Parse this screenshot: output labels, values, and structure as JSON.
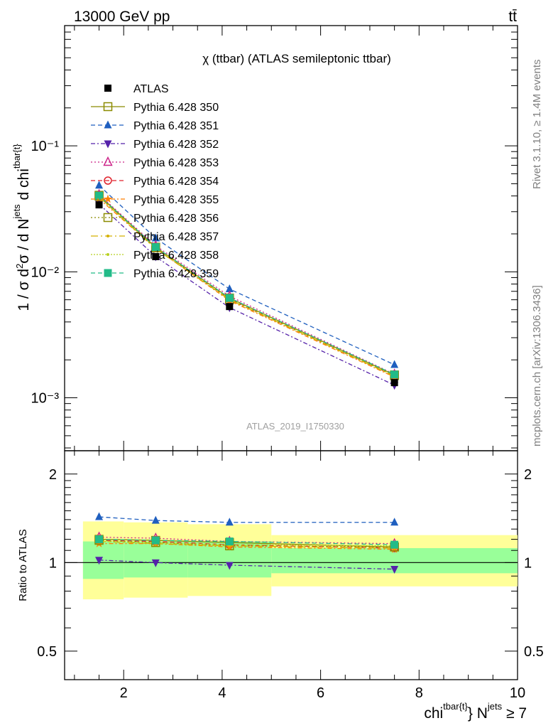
{
  "header": {
    "energy_label": "13000 GeV pp",
    "process_label": "tt̄",
    "plot_title": "χ (ttbar) (ATLAS semileptonic ttbar)",
    "analysis_id": "ATLAS_2019_I1750330",
    "rivet_label": "Rivet 3.1.10, ≥ 1.4M events",
    "mcplots_label": "mcplots.cern.ch [arXiv:1306.3436]"
  },
  "axes": {
    "y_main_label": "1 / σ d²σ / d N^jets d chi^tbar{t}",
    "y_ratio_label": "Ratio to ATLAS",
    "x_label": "chi^tbar{t} N^jets ≥ 7",
    "x_ticks": [
      "2",
      "4",
      "6",
      "8",
      "10"
    ],
    "y_main_ticks": [
      "10⁻³",
      "10⁻²",
      "10⁻¹"
    ],
    "y_ratio_ticks": [
      "0.5",
      "1",
      "2"
    ]
  },
  "chart_data": {
    "type": "line",
    "x_scale": "linear",
    "y_scale": "log",
    "xlim": [
      0.8,
      10.0
    ],
    "ylim": [
      0.00038,
      0.9
    ],
    "ratio_ylim": [
      0.4,
      2.4
    ],
    "x": [
      1.5,
      2.65,
      4.15,
      7.5
    ],
    "bins": [
      [
        1.0,
        2.0
      ],
      [
        2.0,
        3.3
      ],
      [
        3.3,
        5.0
      ],
      [
        5.0,
        10.0
      ]
    ],
    "reference": {
      "name": "ATLAS",
      "values": [
        0.034,
        0.0132,
        0.0053,
        0.00132
      ],
      "band_inner": [
        [
          0.88,
          1.18
        ],
        [
          0.89,
          1.18
        ],
        [
          0.89,
          1.18
        ],
        [
          0.92,
          1.12
        ]
      ],
      "band_outer": [
        [
          0.75,
          1.38
        ],
        [
          0.76,
          1.37
        ],
        [
          0.77,
          1.35
        ],
        [
          0.83,
          1.24
        ]
      ]
    },
    "series": [
      {
        "name": "Pythia 6.428 350",
        "color": "#8b8b00",
        "dash": "",
        "marker": "square-open",
        "values": [
          0.0405,
          0.0157,
          0.0062,
          0.00152
        ],
        "ratio": [
          1.2,
          1.19,
          1.17,
          1.13
        ]
      },
      {
        "name": "Pythia 6.428 351",
        "color": "#1f5fbf",
        "dash": "6,4",
        "marker": "triangle-up",
        "values": [
          0.0485,
          0.0185,
          0.0073,
          0.00183
        ],
        "ratio": [
          1.43,
          1.39,
          1.37,
          1.37
        ]
      },
      {
        "name": "Pythia 6.428 352",
        "color": "#5522aa",
        "dash": "6,3,2,3",
        "marker": "triangle-down",
        "values": [
          0.0345,
          0.0132,
          0.0052,
          0.00126
        ],
        "ratio": [
          1.02,
          1.0,
          0.98,
          0.95
        ]
      },
      {
        "name": "Pythia 6.428 353",
        "color": "#cc2288",
        "dash": "2,3",
        "marker": "triangle-open",
        "values": [
          0.041,
          0.0161,
          0.0064,
          0.00154
        ],
        "ratio": [
          1.22,
          1.21,
          1.18,
          1.16
        ]
      },
      {
        "name": "Pythia 6.428 354",
        "color": "#e0202a",
        "dash": "6,4",
        "marker": "circle-open",
        "values": [
          0.0395,
          0.0156,
          0.0061,
          0.00149
        ],
        "ratio": [
          1.19,
          1.18,
          1.15,
          1.12
        ]
      },
      {
        "name": "Pythia 6.428 355",
        "color": "#ff7f00",
        "dash": "6,3,2,3",
        "marker": "star",
        "values": [
          0.038,
          0.0153,
          0.0059,
          0.00146
        ],
        "ratio": [
          1.16,
          1.16,
          1.13,
          1.11
        ]
      },
      {
        "name": "Pythia 6.428 356",
        "color": "#8b8b00",
        "dash": "2,3",
        "marker": "square-open",
        "values": [
          0.0398,
          0.0155,
          0.006,
          0.0015
        ],
        "ratio": [
          1.19,
          1.17,
          1.14,
          1.13
        ]
      },
      {
        "name": "Pythia 6.428 357",
        "color": "#d4b000",
        "dash": "10,4,2,4",
        "marker": "dot",
        "values": [
          0.0392,
          0.0152,
          0.006,
          0.00148
        ],
        "ratio": [
          1.18,
          1.16,
          1.14,
          1.12
        ]
      },
      {
        "name": "Pythia 6.428 358",
        "color": "#b8d020",
        "dash": "2,2",
        "marker": "dot",
        "values": [
          0.0394,
          0.0154,
          0.0061,
          0.0015
        ],
        "ratio": [
          1.18,
          1.17,
          1.15,
          1.14
        ]
      },
      {
        "name": "Pythia 6.428 359",
        "color": "#22bb88",
        "dash": "6,4",
        "marker": "square",
        "values": [
          0.0402,
          0.0157,
          0.0062,
          0.00153
        ],
        "ratio": [
          1.2,
          1.19,
          1.18,
          1.15
        ]
      }
    ]
  }
}
